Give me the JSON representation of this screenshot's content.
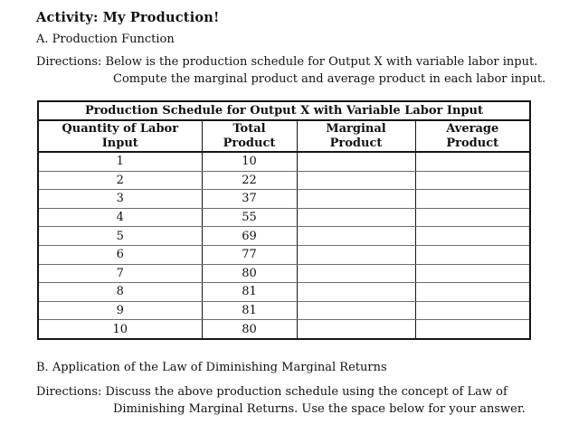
{
  "page": {
    "title": "Activity: My Production!",
    "section_a_heading": "A. Production Function",
    "directions_a_line1": "Directions: Below is the production schedule for Output X with variable labor input.",
    "directions_a_line2": "Compute the marginal product and average product in each labor input.",
    "section_b_heading": "B. Application of the Law of Diminishing Marginal Returns",
    "directions_b_line1": "Directions: Discuss the above production schedule using the concept of Law of",
    "directions_b_line2": "Diminishing Marginal Returns. Use the space below for your answer."
  },
  "table": {
    "title": "Production Schedule for Output X with Variable Labor Input",
    "columns": [
      {
        "key": "labor",
        "line1": "Quantity of Labor",
        "line2": "Input"
      },
      {
        "key": "total",
        "line1": "Total",
        "line2": "Product"
      },
      {
        "key": "marginal",
        "line1": "Marginal",
        "line2": "Product"
      },
      {
        "key": "average",
        "line1": "Average",
        "line2": "Product"
      }
    ],
    "rows": [
      {
        "labor": "1",
        "total": "10",
        "marginal": "",
        "average": ""
      },
      {
        "labor": "2",
        "total": "22",
        "marginal": "",
        "average": ""
      },
      {
        "labor": "3",
        "total": "37",
        "marginal": "",
        "average": ""
      },
      {
        "labor": "4",
        "total": "55",
        "marginal": "",
        "average": ""
      },
      {
        "labor": "5",
        "total": "69",
        "marginal": "",
        "average": ""
      },
      {
        "labor": "6",
        "total": "77",
        "marginal": "",
        "average": ""
      },
      {
        "labor": "7",
        "total": "80",
        "marginal": "",
        "average": ""
      },
      {
        "labor": "8",
        "total": "81",
        "marginal": "",
        "average": ""
      },
      {
        "labor": "9",
        "total": "81",
        "marginal": "",
        "average": ""
      },
      {
        "labor": "10",
        "total": "80",
        "marginal": "",
        "average": ""
      }
    ]
  },
  "colors": {
    "page_background": "#ffffff",
    "text": "#111111",
    "table_border": "#151515",
    "row_divider": "#6e6e6e"
  }
}
